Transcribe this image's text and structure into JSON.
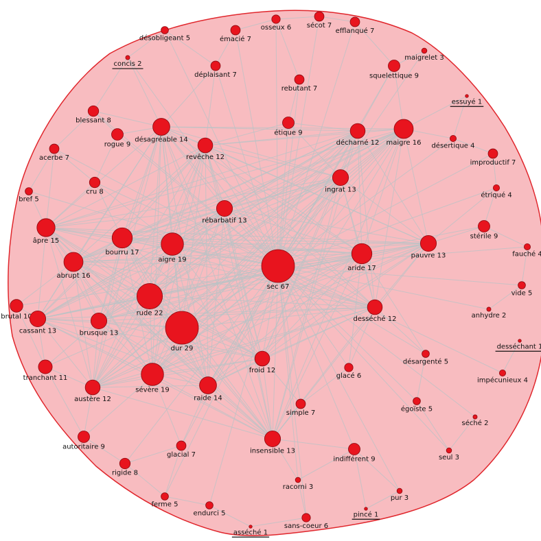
{
  "nodes": [
    {
      "name": "désobligeant",
      "count": 5
    },
    {
      "name": "concis",
      "count": 2,
      "underlined": true
    },
    {
      "name": "émacié",
      "count": 7
    },
    {
      "name": "osseux",
      "count": 6
    },
    {
      "name": "sécot",
      "count": 7
    },
    {
      "name": "efflanqué",
      "count": 7
    },
    {
      "name": "maigrelet",
      "count": 3
    },
    {
      "name": "squelettique",
      "count": 9
    },
    {
      "name": "déplaisant",
      "count": 7
    },
    {
      "name": "rebutant",
      "count": 7
    },
    {
      "name": "essuyé",
      "count": 1,
      "underlined": true
    },
    {
      "name": "blessant",
      "count": 8
    },
    {
      "name": "étique",
      "count": 9
    },
    {
      "name": "décharné",
      "count": 12
    },
    {
      "name": "maigre",
      "count": 16
    },
    {
      "name": "rogue",
      "count": 9
    },
    {
      "name": "désagréable",
      "count": 14
    },
    {
      "name": "revêche",
      "count": 12
    },
    {
      "name": "acerbe",
      "count": 7
    },
    {
      "name": "désertique",
      "count": 4
    },
    {
      "name": "improductif",
      "count": 7
    },
    {
      "name": "ingrat",
      "count": 13
    },
    {
      "name": "cru",
      "count": 8
    },
    {
      "name": "étriqué",
      "count": 4
    },
    {
      "name": "bref",
      "count": 5
    },
    {
      "name": "rébarbatif",
      "count": 13
    },
    {
      "name": "âpre",
      "count": 15
    },
    {
      "name": "stérile",
      "count": 9
    },
    {
      "name": "bourru",
      "count": 17
    },
    {
      "name": "aigre",
      "count": 19
    },
    {
      "name": "sec",
      "count": 67
    },
    {
      "name": "aride",
      "count": 17
    },
    {
      "name": "pauvre",
      "count": 13
    },
    {
      "name": "fauché",
      "count": 4
    },
    {
      "name": "abrupt",
      "count": 16
    },
    {
      "name": "vide",
      "count": 5
    },
    {
      "name": "rude",
      "count": 22
    },
    {
      "name": "desséché",
      "count": 12
    },
    {
      "name": "anhydre",
      "count": 2
    },
    {
      "name": "brutal",
      "count": 10
    },
    {
      "name": "cassant",
      "count": 13
    },
    {
      "name": "brusque",
      "count": 13
    },
    {
      "name": "dur",
      "count": 29
    },
    {
      "name": "desséchant",
      "count": 1,
      "underlined": true
    },
    {
      "name": "désargenté",
      "count": 5
    },
    {
      "name": "froid",
      "count": 12
    },
    {
      "name": "glacé",
      "count": 6
    },
    {
      "name": "impécunieux",
      "count": 4
    },
    {
      "name": "tranchant",
      "count": 11
    },
    {
      "name": "sévère",
      "count": 19
    },
    {
      "name": "austère",
      "count": 12
    },
    {
      "name": "raide",
      "count": 14
    },
    {
      "name": "simple",
      "count": 7
    },
    {
      "name": "égoïste",
      "count": 5
    },
    {
      "name": "séché",
      "count": 2
    },
    {
      "name": "autoritaire",
      "count": 9
    },
    {
      "name": "insensible",
      "count": 13
    },
    {
      "name": "glacial",
      "count": 7
    },
    {
      "name": "indifférent",
      "count": 9
    },
    {
      "name": "seul",
      "count": 3
    },
    {
      "name": "rigide",
      "count": 8
    },
    {
      "name": "racorni",
      "count": 3
    },
    {
      "name": "pur",
      "count": 3
    },
    {
      "name": "ferme",
      "count": 5
    },
    {
      "name": "endurci",
      "count": 5
    },
    {
      "name": "sans-coeur",
      "count": 6
    },
    {
      "name": "pincé",
      "count": 1,
      "underlined": true
    },
    {
      "name": "asséché",
      "count": 1,
      "underlined": true
    }
  ]
}
